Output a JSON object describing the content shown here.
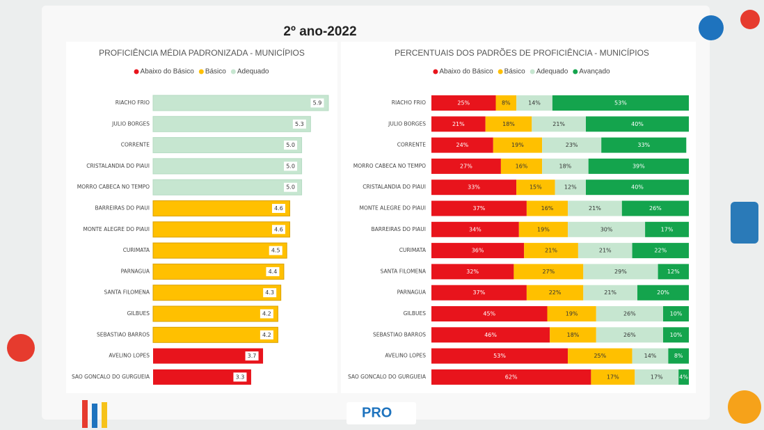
{
  "page_title": "2º ano-2022",
  "footer": {
    "logo": "PRO"
  },
  "chart_data": [
    {
      "type": "bar",
      "orientation": "horizontal",
      "title": "PROFICIÊNCIA MÉDIA PADRONIZADA - MUNICÍPIOS",
      "categories": [
        "RIACHO FRIO",
        "JULIO BORGES",
        "CORRENTE",
        "CRISTALANDIA DO PIAUI",
        "MORRO CABECA NO TEMPO",
        "BARREIRAS DO PIAUI",
        "MONTE ALEGRE DO PIAUI",
        "CURIMATA",
        "PARNAGUA",
        "SANTA FILOMENA",
        "GILBUES",
        "SEBASTIAO BARROS",
        "AVELINO LOPES",
        "SAO GONCALO DO GURGUEIA"
      ],
      "series": [
        {
          "name": "Abaixo do Básico",
          "color": "#e8141c",
          "values": [
            null,
            null,
            null,
            null,
            null,
            null,
            null,
            null,
            null,
            null,
            null,
            null,
            3.7,
            3.3
          ],
          "value_labels": [
            null,
            null,
            null,
            null,
            null,
            null,
            null,
            null,
            null,
            null,
            null,
            null,
            "3.7",
            "3.3"
          ]
        },
        {
          "name": "Básico",
          "color": "#ffc000",
          "values": [
            null,
            null,
            null,
            null,
            null,
            4.6,
            4.6,
            4.5,
            4.4,
            4.3,
            4.2,
            4.2,
            null,
            null
          ],
          "value_labels": [
            null,
            null,
            null,
            null,
            null,
            "4.6",
            "4.6",
            "4.5",
            "4.4",
            "4.3",
            "4.2",
            "4.2",
            null,
            null
          ]
        },
        {
          "name": "Adequado",
          "color": "#c6e6d0",
          "values": [
            5.9,
            5.3,
            5.0,
            5.0,
            5.0,
            null,
            null,
            null,
            null,
            null,
            null,
            null,
            null,
            null
          ],
          "value_labels": [
            "5.9",
            "5.3",
            "5.0",
            "5.0",
            "5.0",
            null,
            null,
            null,
            null,
            null,
            null,
            null,
            null,
            null
          ]
        }
      ]
    },
    {
      "type": "stacked_bar",
      "orientation": "horizontal",
      "title": "PERCENTUAIS DOS PADRÕES DE PROFICIÊNCIA - MUNICÍPIOS",
      "xlim": [
        0,
        100
      ],
      "categories": [
        "RIACHO FRIO",
        "JULIO BORGES",
        "CORRENTE",
        "MORRO CABECA NO TEMPO",
        "CRISTALANDIA DO PIAUI",
        "MONTE ALEGRE DO PIAUI",
        "BARREIRAS DO PIAUI",
        "CURIMATA",
        "SANTA FILOMENA",
        "PARNAGUA",
        "GILBUES",
        "SEBASTIAO BARROS",
        "AVELINO LOPES",
        "SAO GONCALO DO GURGUEIA"
      ],
      "series": [
        {
          "name": "Abaixo do Básico",
          "color": "#e8141c",
          "values": [
            25,
            21,
            24,
            27,
            33,
            37,
            34,
            36,
            32,
            37,
            45,
            46,
            53,
            62
          ],
          "value_labels": [
            "25%",
            "21%",
            "24%",
            "27%",
            "33%",
            "37%",
            "34%",
            "36%",
            "32%",
            "37%",
            "45%",
            "46%",
            "53%",
            "62%"
          ]
        },
        {
          "name": "Básico",
          "color": "#ffc000",
          "values": [
            8,
            18,
            19,
            16,
            15,
            16,
            19,
            21,
            27,
            22,
            19,
            18,
            25,
            17
          ],
          "value_labels": [
            "8%",
            "18%",
            "19%",
            "16%",
            "15%",
            "16%",
            "19%",
            "21%",
            "27%",
            "22%",
            "19%",
            "18%",
            "25%",
            "17%"
          ]
        },
        {
          "name": "Adequado",
          "color": "#c6e6d0",
          "values": [
            14,
            21,
            23,
            18,
            12,
            21,
            30,
            21,
            29,
            21,
            26,
            26,
            14,
            17
          ],
          "value_labels": [
            "14%",
            "21%",
            "23%",
            "18%",
            "12%",
            "21%",
            "30%",
            "21%",
            "29%",
            "21%",
            "26%",
            "26%",
            "14%",
            "17%"
          ]
        },
        {
          "name": "Avançado",
          "color": "#14a44d",
          "values": [
            53,
            40,
            33,
            39,
            40,
            26,
            17,
            22,
            12,
            20,
            10,
            10,
            8,
            4
          ],
          "value_labels": [
            "53%",
            "40%",
            "33%",
            "39%",
            "40%",
            "26%",
            "17%",
            "22%",
            "12%",
            "20%",
            "10%",
            "10%",
            "8%",
            "4%"
          ]
        }
      ]
    }
  ]
}
